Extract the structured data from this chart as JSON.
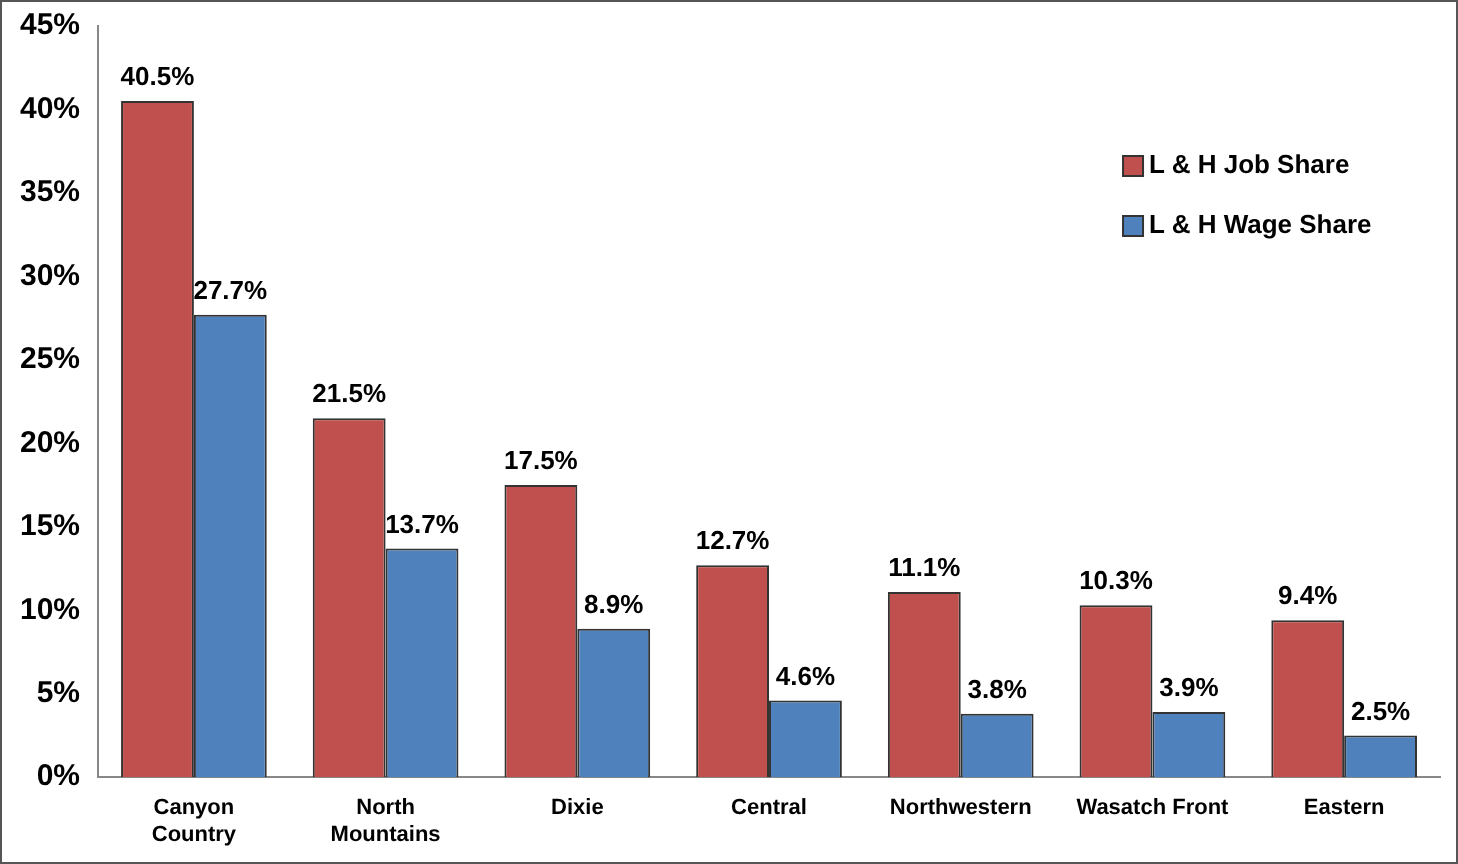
{
  "chart_data": {
    "type": "bar",
    "categories": [
      "Canyon\nCountry",
      "North\nMountains",
      "Dixie",
      "Central",
      "Northwestern",
      "Wasatch Front",
      "Eastern"
    ],
    "series": [
      {
        "name": "L & H Job Share",
        "color": "#c0504d",
        "values": [
          40.5,
          21.5,
          17.5,
          12.7,
          11.1,
          10.3,
          9.4
        ],
        "value_labels": [
          "40.5%",
          "21.5%",
          "17.5%",
          "12.7%",
          "11.1%",
          "10.3%",
          "9.4%"
        ]
      },
      {
        "name": "L & H Wage Share",
        "color": "#4f81bd",
        "values": [
          27.7,
          13.7,
          8.9,
          4.6,
          3.8,
          3.9,
          2.5
        ],
        "value_labels": [
          "27.7%",
          "13.7%",
          "8.9%",
          "4.6%",
          "3.8%",
          "3.9%",
          "2.5%"
        ]
      }
    ],
    "ylim": [
      0,
      45
    ],
    "yticks": [
      {
        "value": 0,
        "label": "0%"
      },
      {
        "value": 5,
        "label": "5%"
      },
      {
        "value": 10,
        "label": "10%"
      },
      {
        "value": 15,
        "label": "15%"
      },
      {
        "value": 20,
        "label": "20%"
      },
      {
        "value": 25,
        "label": "25%"
      },
      {
        "value": 30,
        "label": "30%"
      },
      {
        "value": 35,
        "label": "35%"
      },
      {
        "value": 40,
        "label": "40%"
      },
      {
        "value": 45,
        "label": "45%"
      }
    ],
    "grid": false,
    "legend": "top right"
  }
}
